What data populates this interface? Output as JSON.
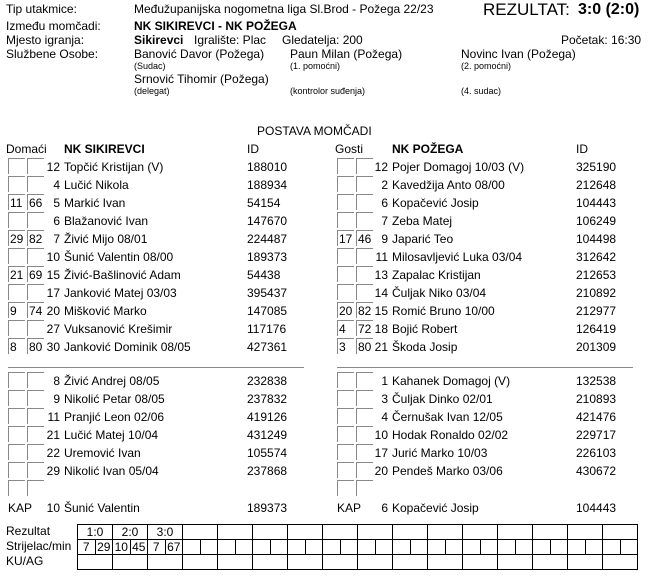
{
  "header": {
    "match_type_label": "Tip utakmice:",
    "match_type": "Međužupanijska nogometna liga Sl.Brod - Požega 22/23",
    "result_label": "REZULTAT:",
    "result": "3:0 (2:0)",
    "teams_label": "Između momčadi:",
    "teams": "NK SIKIREVCI - NK POŽEGA",
    "venue_label": "Mjesto igranja:",
    "venue": "Sikirevci",
    "pitch": "Igralište: Plac",
    "spectators": "Gledatelja: 200",
    "kickoff": "Početak: 16:30",
    "officials_label": "Službene Osobe:",
    "officials": [
      {
        "name": "Banović Davor (Požega)",
        "role": "(Sudac)"
      },
      {
        "name": "Paun Milan (Požega)",
        "role": "(1. pomoćni)"
      },
      {
        "name": "Novinc Ivan (Požega)",
        "role": "(2. pomoćni)"
      },
      {
        "name": "Srnović Tihomir (Požega)",
        "role": "(delegat)"
      },
      {
        "name": "",
        "role": "(kontrolor suđenja)"
      },
      {
        "name": "",
        "role": "(4. sudac)"
      }
    ]
  },
  "lineup_title": "POSTAVA MOMČADI",
  "home": {
    "side_label": "Domaći",
    "team": "NK SIKIREVCI",
    "id_label": "ID",
    "starters": [
      {
        "b1": "",
        "b2": "",
        "no": "12",
        "name": "Topčić Kristijan   (V)",
        "id": "188010"
      },
      {
        "b1": "",
        "b2": "",
        "no": "4",
        "name": "Lučić Nikola",
        "id": "188934"
      },
      {
        "b1": "11",
        "b2": "66",
        "no": "5",
        "name": "Markić Ivan",
        "id": "54154"
      },
      {
        "b1": "",
        "b2": "",
        "no": "6",
        "name": "Blažanović Ivan",
        "id": "147670"
      },
      {
        "b1": "29",
        "b2": "82",
        "no": "7",
        "name": "Živić Mijo 08/01",
        "id": "224487"
      },
      {
        "b1": "",
        "b2": "",
        "no": "10",
        "name": "Šunić Valentin 08/00",
        "id": "189373"
      },
      {
        "b1": "21",
        "b2": "69",
        "no": "15",
        "name": "Živić-Bašlinović Adam",
        "id": "54438"
      },
      {
        "b1": "",
        "b2": "",
        "no": "17",
        "name": "Janković Matej 03/03",
        "id": "395437"
      },
      {
        "b1": "9",
        "b2": "74",
        "no": "20",
        "name": "Mišković Marko",
        "id": "147085"
      },
      {
        "b1": "",
        "b2": "",
        "no": "27",
        "name": "Vuksanović Krešimir",
        "id": "117176"
      },
      {
        "b1": "8",
        "b2": "80",
        "no": "30",
        "name": "Janković Dominik 08/05",
        "id": "427361"
      }
    ],
    "subs": [
      {
        "no": "8",
        "name": "Živić Andrej 08/05",
        "id": "232838"
      },
      {
        "no": "9",
        "name": "Nikolić Petar 08/05",
        "id": "237832"
      },
      {
        "no": "11",
        "name": "Pranjić Leon 02/06",
        "id": "419126"
      },
      {
        "no": "21",
        "name": "Lučić Matej 10/04",
        "id": "431249"
      },
      {
        "no": "22",
        "name": "Uremović Ivan",
        "id": "105574"
      },
      {
        "no": "29",
        "name": "Nikolić Ivan 05/04",
        "id": "237868"
      },
      {
        "no": "",
        "name": "",
        "id": ""
      }
    ],
    "captain": {
      "label": "KAP",
      "no": "10",
      "name": "Šunić Valentin",
      "id": "189373"
    }
  },
  "away": {
    "side_label": "Gosti",
    "team": "NK POŽEGA",
    "id_label": "ID",
    "starters": [
      {
        "b1": "",
        "b2": "",
        "no": "12",
        "name": "Pojer Domagoj 10/03  (V)",
        "id": "325190"
      },
      {
        "b1": "",
        "b2": "",
        "no": "2",
        "name": "Kavedžija Anto 08/00",
        "id": "212648"
      },
      {
        "b1": "",
        "b2": "",
        "no": "6",
        "name": "Kopačević Josip",
        "id": "104443"
      },
      {
        "b1": "",
        "b2": "",
        "no": "7",
        "name": "Zeba Matej",
        "id": "106249"
      },
      {
        "b1": "17",
        "b2": "46",
        "no": "9",
        "name": "Japarić Teo",
        "id": "104498"
      },
      {
        "b1": "",
        "b2": "",
        "no": "11",
        "name": "Milosavljević Luka 03/04",
        "id": "312642"
      },
      {
        "b1": "",
        "b2": "",
        "no": "13",
        "name": "Zapalac Kristijan",
        "id": "212653"
      },
      {
        "b1": "",
        "b2": "",
        "no": "14",
        "name": "Čuljak Niko 03/04",
        "id": "210892"
      },
      {
        "b1": "20",
        "b2": "82",
        "no": "15",
        "name": "Romić Bruno 10/00",
        "id": "212977"
      },
      {
        "b1": "4",
        "b2": "72",
        "no": "18",
        "name": "Bojić Robert",
        "id": "126419"
      },
      {
        "b1": "3",
        "b2": "80",
        "no": "21",
        "name": "Škoda Josip",
        "id": "201309"
      }
    ],
    "subs": [
      {
        "no": "1",
        "name": "Kahanek Domagoj   (V)",
        "id": "132538"
      },
      {
        "no": "3",
        "name": "Čuljak Dinko 02/01",
        "id": "210893"
      },
      {
        "no": "4",
        "name": "Černušak Ivan 12/05",
        "id": "421476"
      },
      {
        "no": "10",
        "name": "Hodak Ronaldo 02/02",
        "id": "229717"
      },
      {
        "no": "17",
        "name": "Jurić Marko  10/03",
        "id": "226103"
      },
      {
        "no": "20",
        "name": "Pendeš Marko 03/06",
        "id": "430672"
      },
      {
        "no": "",
        "name": "",
        "id": ""
      }
    ],
    "captain": {
      "label": "KAP",
      "no": "6",
      "name": "Kopačević Josip",
      "id": "104443"
    }
  },
  "goals": {
    "row_labels": [
      "Rezultat",
      "Strijelac/min",
      "KU/AG"
    ],
    "scores": [
      "1:0",
      "2:0",
      "3:0"
    ],
    "scorers": [
      [
        "7",
        "29"
      ],
      [
        "10",
        "45"
      ],
      [
        "7",
        "67"
      ]
    ]
  }
}
